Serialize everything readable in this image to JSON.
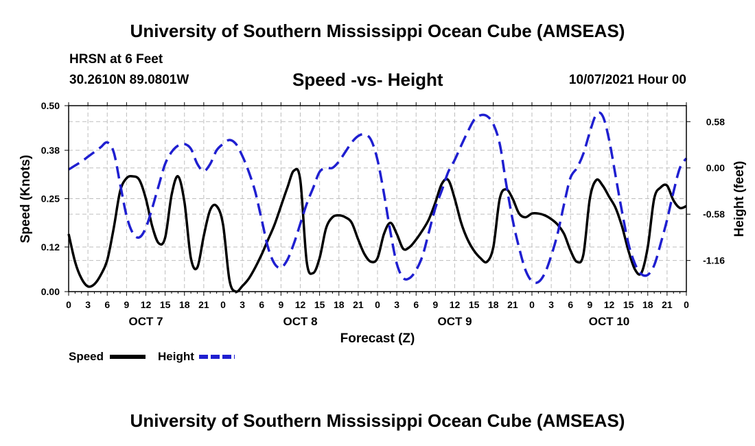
{
  "header": {
    "title": "University of Southern Mississippi Ocean Cube (AMSEAS)",
    "station_name": "HRSN at 6 Feet",
    "station_coords": "30.2610N  89.0801W",
    "run_label": "10/07/2021 Hour 00"
  },
  "footer": {
    "title": "University of Southern Mississippi Ocean Cube (AMSEAS)"
  },
  "chart_data": {
    "type": "line",
    "title": "Speed -vs- Height",
    "xlabel": "Forecast (Z)",
    "ylabel": "Speed (Knots)",
    "y2label": "Height (feet)",
    "x_unit": "hours since OCT 7 00Z",
    "xlim": [
      0,
      96
    ],
    "ylim": [
      0,
      0.5
    ],
    "y2lim": [
      -1.55,
      0.78
    ],
    "x_ticks": [
      0,
      3,
      6,
      9,
      12,
      15,
      18,
      21,
      24,
      27,
      30,
      33,
      36,
      39,
      42,
      45,
      48,
      51,
      54,
      57,
      60,
      63,
      66,
      69,
      72,
      75,
      78,
      81,
      84,
      87,
      90,
      93,
      96
    ],
    "x_tick_labels": [
      "0",
      "3",
      "6",
      "9",
      "12",
      "15",
      "18",
      "21",
      "0",
      "3",
      "6",
      "9",
      "12",
      "15",
      "18",
      "21",
      "0",
      "3",
      "6",
      "9",
      "12",
      "15",
      "18",
      "21",
      "0",
      "3",
      "6",
      "9",
      "12",
      "15",
      "18",
      "21",
      "0"
    ],
    "day_labels": [
      {
        "x": 12,
        "label": "OCT 7"
      },
      {
        "x": 36,
        "label": "OCT 8"
      },
      {
        "x": 60,
        "label": "OCT 9"
      },
      {
        "x": 84,
        "label": "OCT 10"
      }
    ],
    "y_ticks": [
      0.0,
      0.12,
      0.25,
      0.38,
      0.5
    ],
    "y_tick_labels": [
      "0.00",
      "0.12",
      "0.25",
      "0.38",
      "0.50"
    ],
    "y2_ticks": [
      0.58,
      0.0,
      -0.58,
      -1.16
    ],
    "y2_tick_labels": [
      "0.58",
      "0.00",
      "-0.58",
      "-1.16"
    ],
    "grid": true,
    "series": [
      {
        "name": "Speed",
        "axis": "left",
        "color": "#000000",
        "style": "solid",
        "x": [
          0,
          1,
          2,
          3,
          4,
          5,
          6,
          7,
          8,
          9,
          10,
          11,
          12,
          13,
          14,
          15,
          16,
          17,
          18,
          19,
          20,
          21,
          22,
          23,
          24,
          25,
          26,
          27,
          28,
          29,
          30,
          31,
          32,
          33,
          34,
          35,
          36,
          37,
          38,
          39,
          40,
          41,
          42,
          43,
          44,
          45,
          46,
          47,
          48,
          49,
          50,
          51,
          52,
          53,
          54,
          55,
          56,
          57,
          58,
          59,
          60,
          61,
          62,
          63,
          64,
          65,
          66,
          67,
          68,
          69,
          70,
          71,
          72,
          73,
          74,
          75,
          76,
          77,
          78,
          79,
          80,
          81,
          82,
          83,
          84,
          85,
          86,
          87,
          88,
          89,
          90,
          91,
          92,
          93,
          94,
          95,
          96
        ],
        "values": [
          0.155,
          0.08,
          0.035,
          0.014,
          0.02,
          0.045,
          0.085,
          0.17,
          0.27,
          0.305,
          0.31,
          0.3,
          0.25,
          0.175,
          0.13,
          0.145,
          0.26,
          0.31,
          0.24,
          0.09,
          0.065,
          0.15,
          0.22,
          0.23,
          0.18,
          0.03,
          0.0,
          0.015,
          0.035,
          0.065,
          0.1,
          0.14,
          0.18,
          0.23,
          0.28,
          0.325,
          0.3,
          0.08,
          0.05,
          0.09,
          0.17,
          0.2,
          0.205,
          0.2,
          0.185,
          0.14,
          0.1,
          0.08,
          0.09,
          0.155,
          0.185,
          0.155,
          0.115,
          0.12,
          0.14,
          0.165,
          0.195,
          0.24,
          0.29,
          0.3,
          0.25,
          0.185,
          0.14,
          0.11,
          0.09,
          0.08,
          0.12,
          0.25,
          0.275,
          0.25,
          0.21,
          0.2,
          0.21,
          0.21,
          0.205,
          0.195,
          0.18,
          0.155,
          0.11,
          0.08,
          0.1,
          0.25,
          0.3,
          0.285,
          0.255,
          0.225,
          0.175,
          0.11,
          0.06,
          0.05,
          0.12,
          0.25,
          0.28,
          0.285,
          0.245,
          0.225,
          0.23
        ]
      },
      {
        "name": "Height",
        "axis": "right",
        "color": "#1f1fd0",
        "style": "dashed",
        "x": [
          0,
          1,
          2,
          3,
          4,
          5,
          6,
          7,
          8,
          9,
          10,
          11,
          12,
          13,
          14,
          15,
          16,
          17,
          18,
          19,
          20,
          21,
          22,
          23,
          24,
          25,
          26,
          27,
          28,
          29,
          30,
          31,
          32,
          33,
          34,
          35,
          36,
          37,
          38,
          39,
          40,
          41,
          42,
          43,
          44,
          45,
          46,
          47,
          48,
          49,
          50,
          51,
          52,
          53,
          54,
          55,
          56,
          57,
          58,
          59,
          60,
          61,
          62,
          63,
          64,
          65,
          66,
          67,
          68,
          69,
          70,
          71,
          72,
          73,
          74,
          75,
          76,
          77,
          78,
          79,
          80,
          81,
          82,
          83,
          84,
          85,
          86,
          87,
          88,
          89,
          90,
          91,
          92,
          93,
          94,
          95,
          96
        ],
        "values": [
          -0.02,
          0.03,
          0.08,
          0.14,
          0.2,
          0.26,
          0.32,
          0.2,
          -0.2,
          -0.6,
          -0.82,
          -0.87,
          -0.75,
          -0.5,
          -0.22,
          0.05,
          0.2,
          0.28,
          0.3,
          0.24,
          0.05,
          -0.04,
          0.05,
          0.22,
          0.3,
          0.35,
          0.3,
          0.15,
          -0.05,
          -0.3,
          -0.65,
          -1.0,
          -1.2,
          -1.25,
          -1.15,
          -0.95,
          -0.7,
          -0.45,
          -0.25,
          -0.05,
          0.0,
          0.0,
          0.08,
          0.2,
          0.32,
          0.4,
          0.42,
          0.35,
          0.1,
          -0.32,
          -0.8,
          -1.2,
          -1.38,
          -1.38,
          -1.28,
          -1.1,
          -0.8,
          -0.5,
          -0.28,
          -0.05,
          0.1,
          0.28,
          0.45,
          0.6,
          0.66,
          0.65,
          0.55,
          0.3,
          -0.2,
          -0.65,
          -1.0,
          -1.28,
          -1.42,
          -1.43,
          -1.32,
          -1.1,
          -0.82,
          -0.45,
          -0.12,
          0.0,
          0.18,
          0.45,
          0.67,
          0.65,
          0.35,
          -0.1,
          -0.55,
          -0.95,
          -1.2,
          -1.33,
          -1.34,
          -1.22,
          -0.95,
          -0.65,
          -0.3,
          0.0,
          0.12
        ]
      }
    ],
    "legend": {
      "position": "bottom-left",
      "entries": [
        {
          "label": "Speed",
          "color": "#000000",
          "style": "solid"
        },
        {
          "label": "Height",
          "color": "#1f1fd0",
          "style": "dashed"
        }
      ]
    }
  }
}
